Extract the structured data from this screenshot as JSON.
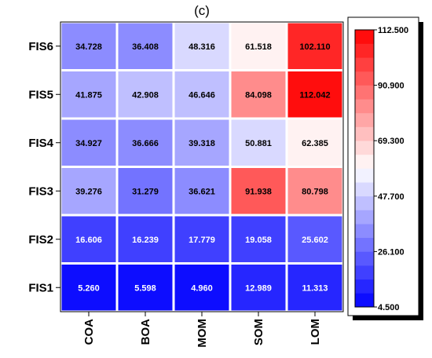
{
  "chart_data": {
    "type": "heatmap",
    "title": "(c)",
    "x_categories": [
      "COA",
      "BOA",
      "MOM",
      "SOM",
      "LOM"
    ],
    "y_categories": [
      "FIS1",
      "FIS2",
      "FIS3",
      "FIS4",
      "FIS5",
      "FIS6"
    ],
    "values": [
      [
        5.26,
        5.598,
        4.96,
        12.989,
        11.313
      ],
      [
        16.606,
        16.239,
        17.779,
        19.058,
        25.602
      ],
      [
        39.276,
        31.279,
        36.621,
        91.938,
        80.798
      ],
      [
        34.927,
        36.666,
        39.318,
        50.881,
        62.385
      ],
      [
        41.875,
        42.908,
        46.646,
        84.098,
        112.042
      ],
      [
        34.728,
        36.408,
        48.316,
        61.518,
        102.11
      ]
    ],
    "labels": [
      [
        "5.260",
        "5.598",
        "4.960",
        "12.989",
        "11.313"
      ],
      [
        "16.606",
        "16.239",
        "17.779",
        "19.058",
        "25.602"
      ],
      [
        "39.276",
        "31.279",
        "36.621",
        "91.938",
        "80.798"
      ],
      [
        "34.927",
        "36.666",
        "39.318",
        "50.881",
        "62.385"
      ],
      [
        "41.875",
        "42.908",
        "46.646",
        "84.098",
        "112.042"
      ],
      [
        "34.728",
        "36.408",
        "48.316",
        "61.518",
        "102.110"
      ]
    ],
    "colorbar": {
      "min": 4.5,
      "max": 112.5,
      "ticks": [
        4.5,
        26.1,
        47.7,
        69.3,
        90.9,
        112.5
      ],
      "tick_labels": [
        "4.500",
        "26.100",
        "47.700",
        "69.300",
        "90.900",
        "112.500"
      ],
      "colors": [
        "#0000ff",
        "#ffffff",
        "#ff0000"
      ],
      "levels": 20
    },
    "grid": true,
    "legend_position": "right"
  }
}
